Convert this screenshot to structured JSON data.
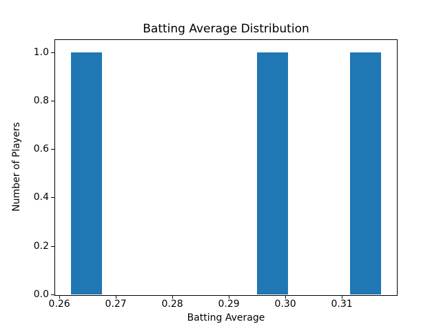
{
  "chart_data": {
    "type": "bar",
    "subtype": "histogram",
    "title": "Batting Average Distribution",
    "xlabel": "Batting Average",
    "ylabel": "Number of Players",
    "bin_edges": [
      0.262,
      0.2675,
      0.273,
      0.2785,
      0.284,
      0.2895,
      0.295,
      0.3005,
      0.306,
      0.3115,
      0.317
    ],
    "counts": [
      1,
      0,
      0,
      0,
      0,
      0,
      1,
      0,
      0,
      1
    ],
    "xlim": [
      0.25925,
      0.31975
    ],
    "ylim": [
      0,
      1.05
    ],
    "xticks": [
      0.26,
      0.27,
      0.28,
      0.29,
      0.3,
      0.31
    ],
    "xtick_labels": [
      "0.26",
      "0.27",
      "0.28",
      "0.29",
      "0.30",
      "0.31"
    ],
    "yticks": [
      0.0,
      0.2,
      0.4,
      0.6,
      0.8,
      1.0
    ],
    "ytick_labels": [
      "0.0",
      "0.2",
      "0.4",
      "0.6",
      "0.8",
      "1.0"
    ],
    "bar_color": "#1f77b4",
    "axis_color": "#000000",
    "background_color": "#ffffff",
    "grid": false,
    "legend": null
  }
}
